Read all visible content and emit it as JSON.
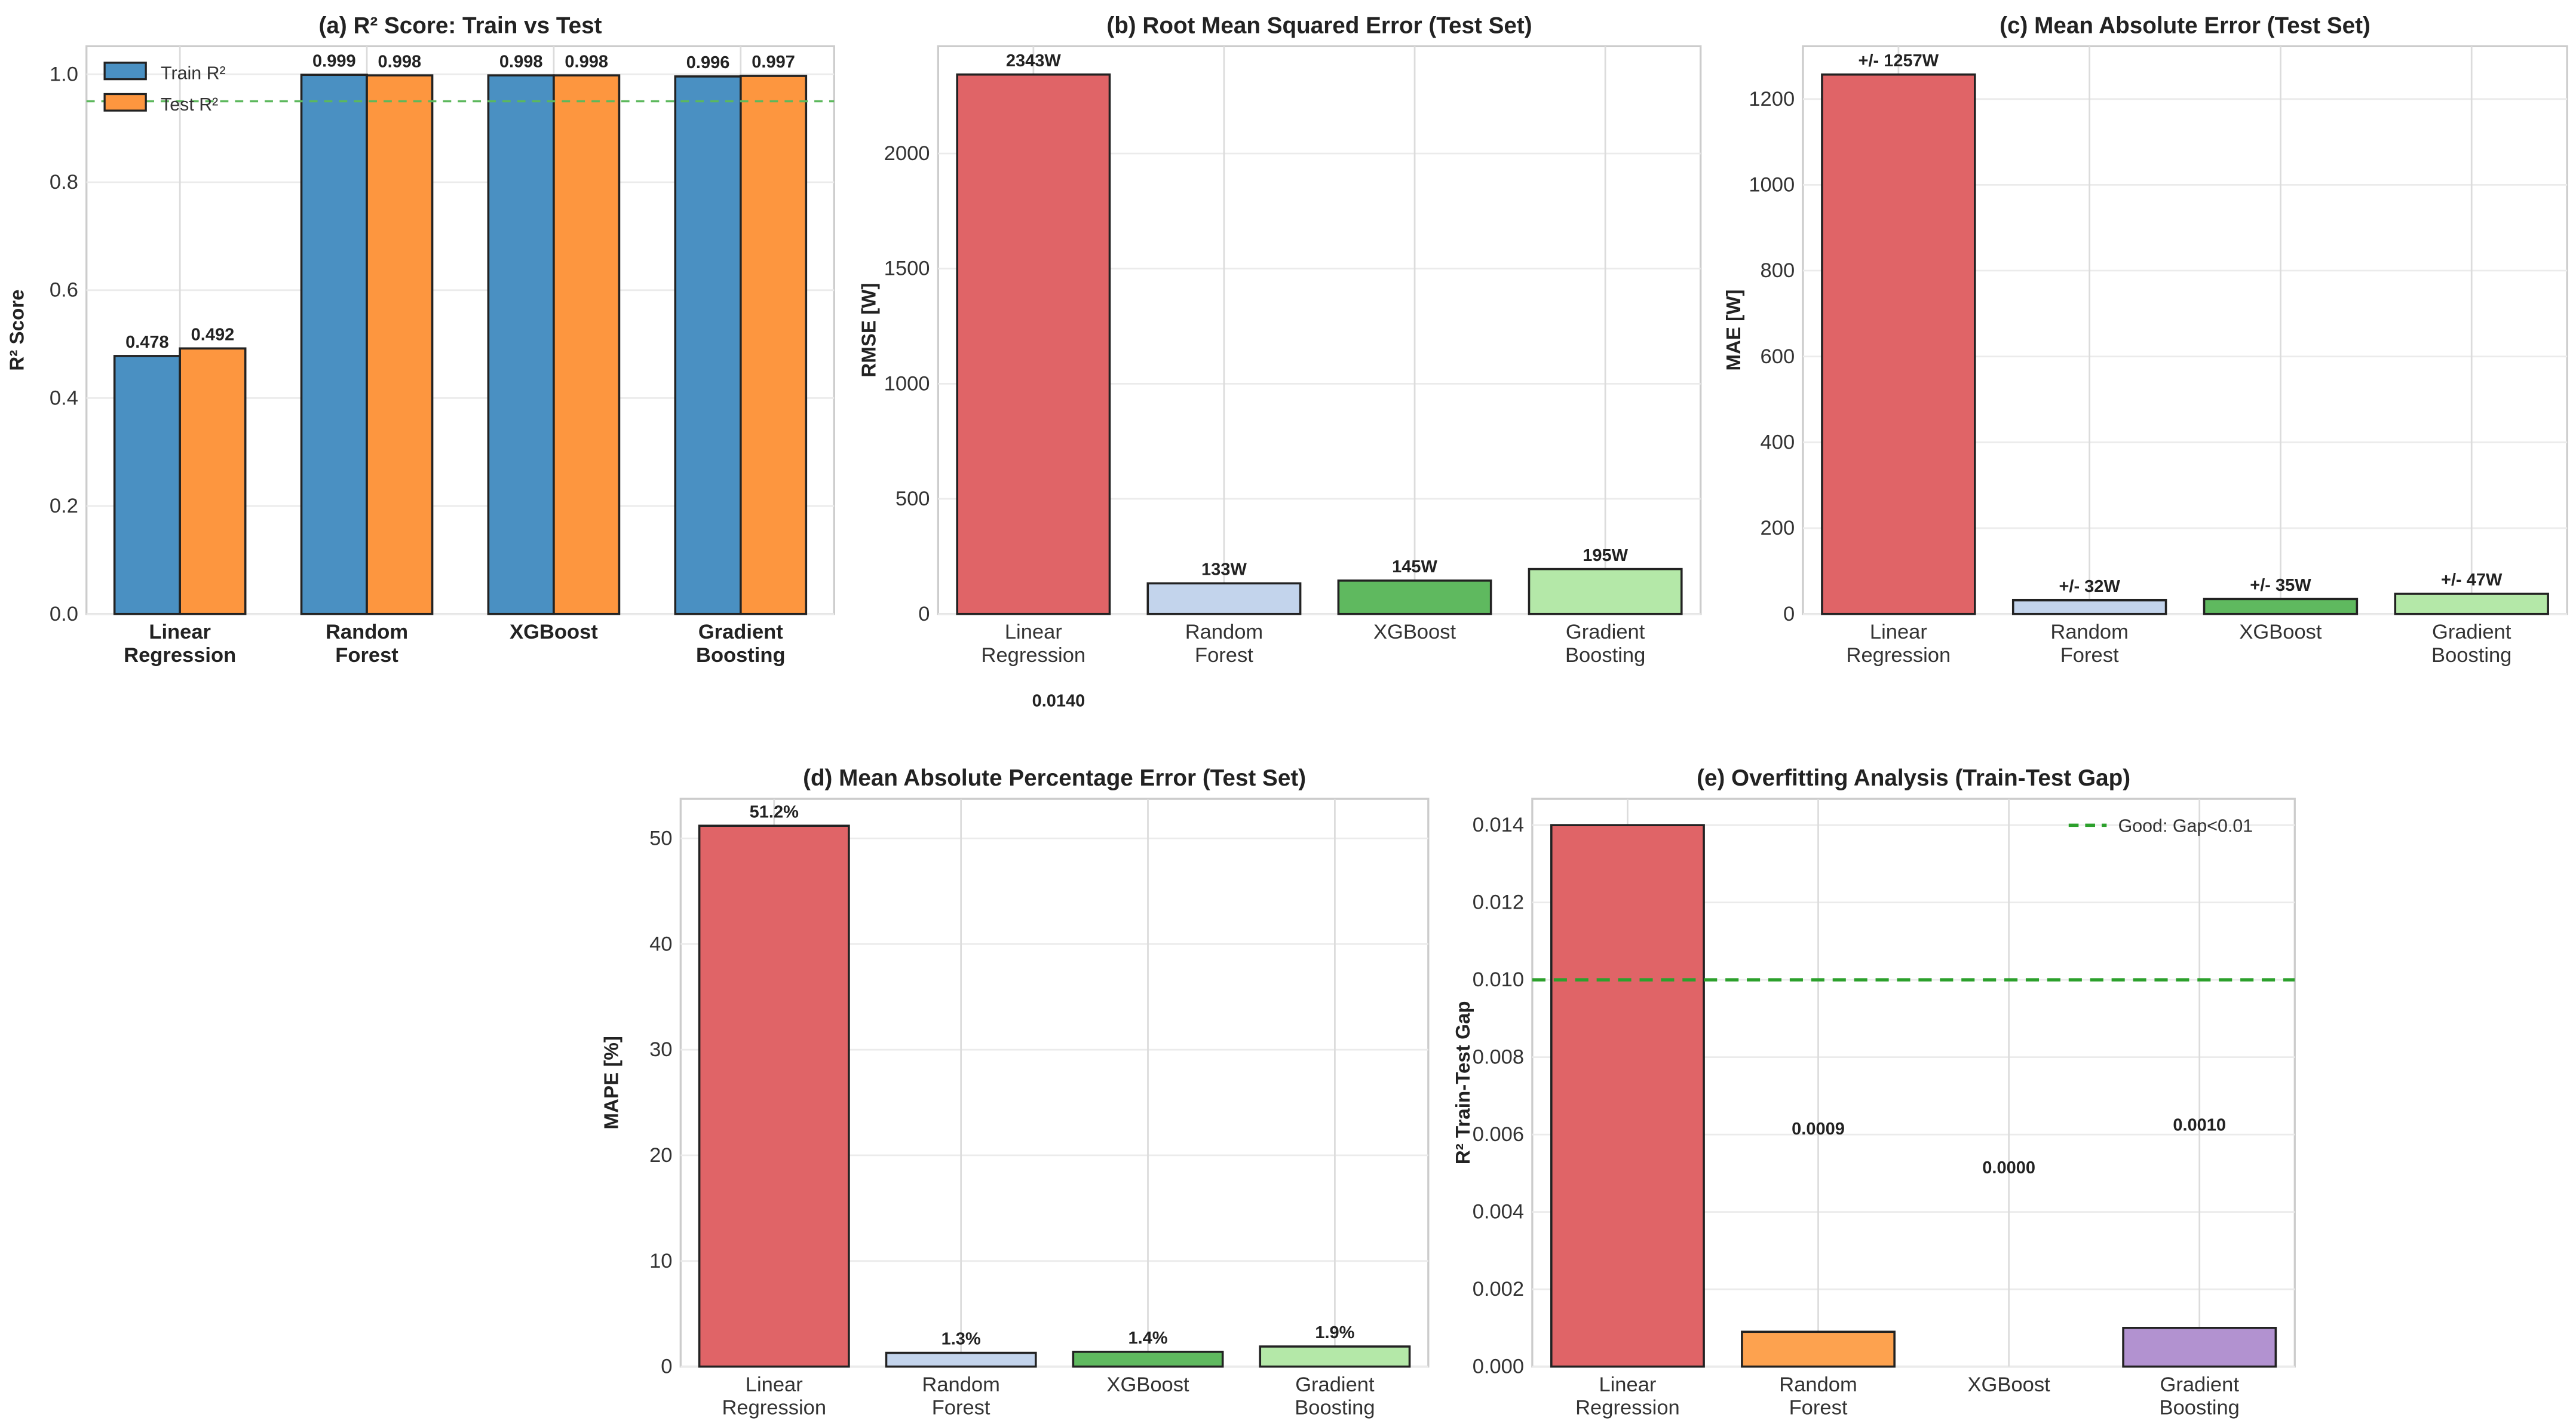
{
  "chart_data": [
    {
      "id": "a",
      "type": "bar",
      "title": "(a) R² Score: Train vs Test",
      "xlabel": "",
      "ylabel": "R² Score",
      "ylim": [
        0,
        1.052
      ],
      "yticks": [
        "0.0",
        "0.2",
        "0.4",
        "0.6",
        "0.8",
        "1.0"
      ],
      "ytick_values": [
        0,
        0.2,
        0.4,
        0.6,
        0.8,
        1.0
      ],
      "categories": [
        [
          "Linear",
          "Regression"
        ],
        [
          "Random",
          "Forest"
        ],
        [
          "XGBoost"
        ],
        [
          "Gradient",
          "Boosting"
        ]
      ],
      "series": [
        {
          "name": "Train R²",
          "color": "#4a90c2",
          "values": [
            0.478,
            0.999,
            0.998,
            0.996
          ],
          "labels": [
            "0.478",
            "0.999",
            "0.998",
            "0.996"
          ]
        },
        {
          "name": "Test R²",
          "color": "#fd963f",
          "values": [
            0.492,
            0.998,
            0.998,
            0.997
          ],
          "labels": [
            "0.492",
            "0.998",
            "0.998",
            "0.997"
          ]
        }
      ],
      "hline": {
        "value": 0.95,
        "color": "#5cb85c"
      },
      "legend": "top-left",
      "grid": true
    },
    {
      "id": "b",
      "type": "bar",
      "title": "(b) Root Mean Squared Error (Test Set)",
      "ylabel": "RMSE [W]",
      "ylim": [
        0,
        2466
      ],
      "yticks": [
        "0",
        "500",
        "1000",
        "1500",
        "2000"
      ],
      "ytick_values": [
        0,
        500,
        1000,
        1500,
        2000
      ],
      "categories": [
        [
          "Linear",
          "Regression"
        ],
        [
          "Random",
          "Forest"
        ],
        [
          "XGBoost"
        ],
        [
          "Gradient",
          "Boosting"
        ]
      ],
      "series": [
        {
          "name": "RMSE",
          "colors": [
            "#e06467",
            "#c3d4ec",
            "#5fb95f",
            "#b4e8a8"
          ],
          "values": [
            2343,
            133,
            145,
            195
          ],
          "labels": [
            "2343W",
            "133W",
            "145W",
            "195W"
          ]
        }
      ],
      "grid": true
    },
    {
      "id": "c",
      "type": "bar",
      "title": "(c) Mean Absolute Error (Test Set)",
      "ylabel": "MAE [W]",
      "ylim": [
        0,
        1323
      ],
      "yticks": [
        "0",
        "200",
        "400",
        "600",
        "800",
        "1000",
        "1200"
      ],
      "ytick_values": [
        0,
        200,
        400,
        600,
        800,
        1000,
        1200
      ],
      "categories": [
        [
          "Linear",
          "Regression"
        ],
        [
          "Random",
          "Forest"
        ],
        [
          "XGBoost"
        ],
        [
          "Gradient",
          "Boosting"
        ]
      ],
      "series": [
        {
          "name": "MAE",
          "colors": [
            "#e06467",
            "#c3d4ec",
            "#5fb95f",
            "#b4e8a8"
          ],
          "values": [
            1257,
            32,
            35,
            47
          ],
          "labels": [
            "+/- 1257W",
            "+/- 32W",
            "+/- 35W",
            "+/- 47W"
          ]
        }
      ],
      "grid": true
    },
    {
      "id": "d",
      "type": "bar",
      "title": "(d) Mean Absolute Percentage Error (Test Set)",
      "ylabel": "MAPE [%]",
      "ylim": [
        0,
        53.75
      ],
      "yticks": [
        "0",
        "10",
        "20",
        "30",
        "40",
        "50"
      ],
      "ytick_values": [
        0,
        10,
        20,
        30,
        40,
        50
      ],
      "categories": [
        [
          "Linear",
          "Regression"
        ],
        [
          "Random",
          "Forest"
        ],
        [
          "XGBoost"
        ],
        [
          "Gradient",
          "Boosting"
        ]
      ],
      "series": [
        {
          "name": "MAPE",
          "colors": [
            "#e06467",
            "#c3d4ec",
            "#5fb95f",
            "#b4e8a8"
          ],
          "values": [
            51.2,
            1.3,
            1.4,
            1.9
          ],
          "labels": [
            "51.2%",
            "1.3%",
            "1.4%",
            "1.9%"
          ]
        }
      ],
      "grid": true
    },
    {
      "id": "e",
      "type": "bar",
      "title": "(e) Overfitting Analysis (Train-Test Gap)",
      "ylabel": "R² Train-Test Gap",
      "ylim": [
        0,
        0.01468
      ],
      "yticks": [
        "0.000",
        "0.002",
        "0.004",
        "0.006",
        "0.008",
        "0.010",
        "0.012",
        "0.014"
      ],
      "ytick_values": [
        0,
        0.002,
        0.004,
        0.006,
        0.008,
        0.01,
        0.012,
        0.014
      ],
      "categories": [
        [
          "Linear",
          "Regression"
        ],
        [
          "Random",
          "Forest"
        ],
        [
          "XGBoost"
        ],
        [
          "Gradient",
          "Boosting"
        ]
      ],
      "series": [
        {
          "name": "Gap",
          "colors": [
            "#e06467",
            "#fda24f",
            "#5fb95f",
            "#b292d0"
          ],
          "values": [
            0.014,
            0.0009,
            0.0,
            0.001
          ],
          "labels": [
            "0.0140",
            "0.0009",
            "0.0000",
            "0.0010"
          ]
        }
      ],
      "hline": {
        "value": 0.01,
        "color": "#2ca02c",
        "label": "Good: Gap<0.01"
      },
      "legend": "top-right",
      "grid": true
    }
  ]
}
